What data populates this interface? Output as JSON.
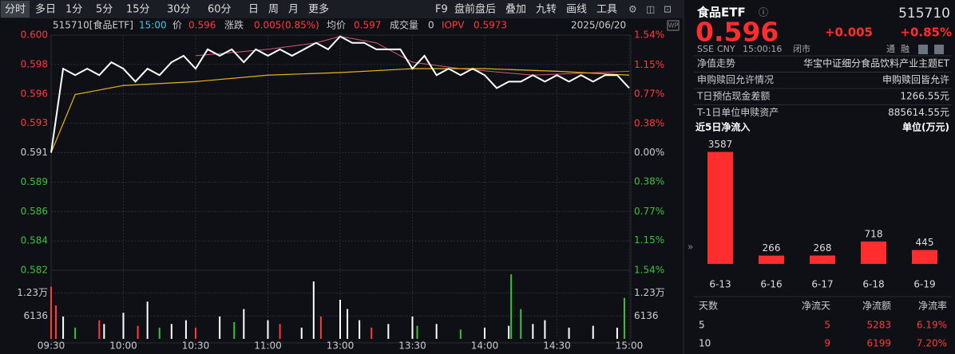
{
  "toolbar": {
    "tabs": [
      "分时",
      "多日",
      "1分",
      "5分",
      "15分",
      "30分",
      "60分",
      "日",
      "周",
      "月",
      "更多"
    ],
    "tools": [
      "F9",
      "盘前盘后",
      "叠加",
      "九转",
      "画线",
      "工具"
    ]
  },
  "chart": {
    "header": {
      "code": "515710[食品ETF]",
      "time": "15:00",
      "price_label": "价",
      "price": "0.596",
      "change_label": "涨跌",
      "change": "0.005(0.85%)",
      "avg_label": "均价",
      "avg": "0.597",
      "volume_label": "成交量",
      "volume": "0",
      "iopv_label": "IOPV",
      "iopv": "0.5973",
      "date": "2025/06/20",
      "badge": "WP"
    },
    "xlim": [
      0,
      240
    ],
    "xticks": [
      {
        "value": 0,
        "label": "09:30"
      },
      {
        "value": 30,
        "label": "10:00"
      },
      {
        "value": 60,
        "label": "10:30"
      },
      {
        "value": 90,
        "label": "11:00"
      },
      {
        "value": 120,
        "label": "13:00"
      },
      {
        "value": 150,
        "label": "13:30"
      },
      {
        "value": 180,
        "label": "14:00"
      },
      {
        "value": 210,
        "label": "14:30"
      },
      {
        "value": 240,
        "label": "15:00"
      }
    ],
    "ylim": [
      0.5819,
      0.6001
    ],
    "yticks": [
      {
        "value": 0.6001,
        "label": "0.600"
      },
      {
        "value": 0.59783,
        "label": "0.598"
      },
      {
        "value": 0.59555,
        "label": "0.596"
      },
      {
        "value": 0.59328,
        "label": "0.593"
      },
      {
        "value": 0.591,
        "label": "0.591"
      },
      {
        "value": 0.58872,
        "label": "0.589"
      },
      {
        "value": 0.58645,
        "label": "0.586"
      },
      {
        "value": 0.58417,
        "label": "0.584"
      },
      {
        "value": 0.5819,
        "label": "0.582"
      }
    ],
    "y2lim": [
      -1.54,
      1.54
    ],
    "y2ticks": [
      {
        "value": 1.54,
        "label": "1.54%"
      },
      {
        "value": 1.15,
        "label": "1.15%"
      },
      {
        "value": 0.77,
        "label": "0.77%"
      },
      {
        "value": 0.38,
        "label": "0.38%"
      },
      {
        "value": 0,
        "label": "0.00%"
      },
      {
        "value": -0.38,
        "label": "0.38%"
      },
      {
        "value": -0.77,
        "label": "0.77%"
      },
      {
        "value": -1.15,
        "label": "1.15%"
      },
      {
        "value": -1.54,
        "label": "1.54%"
      }
    ],
    "price": {
      "color": "#ffffff",
      "x": [
        0,
        5,
        10,
        15,
        20,
        25,
        30,
        35,
        40,
        45,
        50,
        55,
        60,
        65,
        70,
        75,
        80,
        85,
        90,
        95,
        100,
        105,
        110,
        115,
        120,
        125,
        130,
        135,
        140,
        145,
        150,
        155,
        160,
        165,
        170,
        175,
        180,
        185,
        190,
        195,
        200,
        205,
        210,
        215,
        220,
        225,
        230,
        235,
        240
      ],
      "values": [
        0.591,
        0.5975,
        0.597,
        0.5975,
        0.597,
        0.598,
        0.5975,
        0.5965,
        0.5975,
        0.597,
        0.598,
        0.5985,
        0.5975,
        0.599,
        0.5985,
        0.599,
        0.598,
        0.599,
        0.5985,
        0.599,
        0.5985,
        0.599,
        0.5995,
        0.599,
        0.6,
        0.5995,
        0.5995,
        0.599,
        0.599,
        0.599,
        0.5975,
        0.5985,
        0.597,
        0.5975,
        0.597,
        0.5975,
        0.597,
        0.596,
        0.5965,
        0.5965,
        0.597,
        0.5965,
        0.597,
        0.5965,
        0.597,
        0.5965,
        0.597,
        0.597,
        0.596
      ]
    },
    "average": {
      "color": "#e6b422",
      "x": [
        0,
        10,
        30,
        60,
        90,
        120,
        150,
        180,
        210,
        240
      ],
      "values": [
        0.591,
        0.5955,
        0.5962,
        0.5965,
        0.597,
        0.5972,
        0.5975,
        0.5975,
        0.5973,
        0.597
      ]
    },
    "iopv": {
      "color": "#d85a78",
      "x": [
        60,
        90,
        110,
        120,
        135,
        150,
        170,
        200,
        240
      ],
      "values": [
        0.5985,
        0.599,
        0.5995,
        0.6,
        0.5995,
        0.598,
        0.5975,
        0.597,
        0.5973
      ]
    },
    "volume": {
      "ylim": [
        0,
        18400
      ],
      "yticks": [
        6136,
        {
          "value": 12300,
          "label": "1.23万"
        }
      ],
      "x": [
        0,
        2,
        5,
        10,
        20,
        22,
        30,
        36,
        40,
        45,
        50,
        56,
        60,
        70,
        76,
        80,
        90,
        95,
        104,
        109,
        112,
        120,
        123,
        128,
        133,
        140,
        150,
        152,
        160,
        170,
        180,
        190,
        191,
        195,
        200,
        205,
        215,
        225,
        235,
        238
      ],
      "values": [
        14000,
        9000,
        6000,
        3000,
        5000,
        4000,
        7000,
        3500,
        10000,
        3000,
        4000,
        5000,
        3000,
        6000,
        4500,
        8000,
        5000,
        4000,
        3000,
        15400,
        6000,
        10500,
        8000,
        5000,
        3000,
        4000,
        6000,
        3500,
        4000,
        2500,
        3000,
        3500,
        17300,
        8000,
        4000,
        5000,
        3000,
        3500,
        3000,
        11000
      ],
      "colors": [
        "#ff3b3b",
        "#ff3b3b",
        "#ffffff",
        "#3bc23b",
        "#ff3b3b",
        "#ffffff",
        "#ffffff",
        "#ff3b3b",
        "#ffffff",
        "#3bc23b",
        "#ffffff",
        "#ffffff",
        "#ff3b3b",
        "#ffffff",
        "#3bc23b",
        "#ffffff",
        "#ffffff",
        "#ff3b3b",
        "#ffffff",
        "#ffffff",
        "#ff3b3b",
        "#ffffff",
        "#ffffff",
        "#ffffff",
        "#ff3b3b",
        "#ffffff",
        "#ffffff",
        "#3bc23b",
        "#ffffff",
        "#3bc23b",
        "#ffffff",
        "#ffffff",
        "#3bc23b",
        "#3bc23b",
        "#ffffff",
        "#ffffff",
        "#ffffff",
        "#ffffff",
        "#ffffff",
        "#3bc23b"
      ]
    }
  },
  "quote": {
    "name": "食品ETF",
    "code": "515710",
    "price": "0.596",
    "change": "+0.005",
    "change_pct": "+0.85%",
    "market": "SSE",
    "currency": "CNY",
    "time": "15:00:16",
    "status": "闭市",
    "tags": [
      "通",
      "融"
    ]
  },
  "info": [
    [
      "净值走势",
      "华宝中证细分食品饮料产业主题ET"
    ],
    [
      "申购赎回允许情况",
      "申购赎回皆允许"
    ],
    [
      "T日预估现金差额",
      "1266.55元"
    ],
    [
      "T-1日单位申赎资产",
      "885614.55元"
    ]
  ],
  "flow": {
    "title": "近5日净流入",
    "unit": "单位(万元)",
    "categories": [
      "6-13",
      "6-16",
      "6-17",
      "6-18",
      "6-19"
    ],
    "values": [
      3587,
      266,
      268,
      718,
      445
    ],
    "color": "#ff2d2d",
    "ylim": [
      0,
      3600
    ]
  },
  "flow_table": {
    "header": [
      "天数",
      "净流天",
      "净流额",
      "净流率"
    ],
    "rows": [
      [
        "5",
        "5",
        "5283",
        "6.19%"
      ],
      [
        "10",
        "9",
        "6199",
        "7.20%"
      ]
    ]
  }
}
